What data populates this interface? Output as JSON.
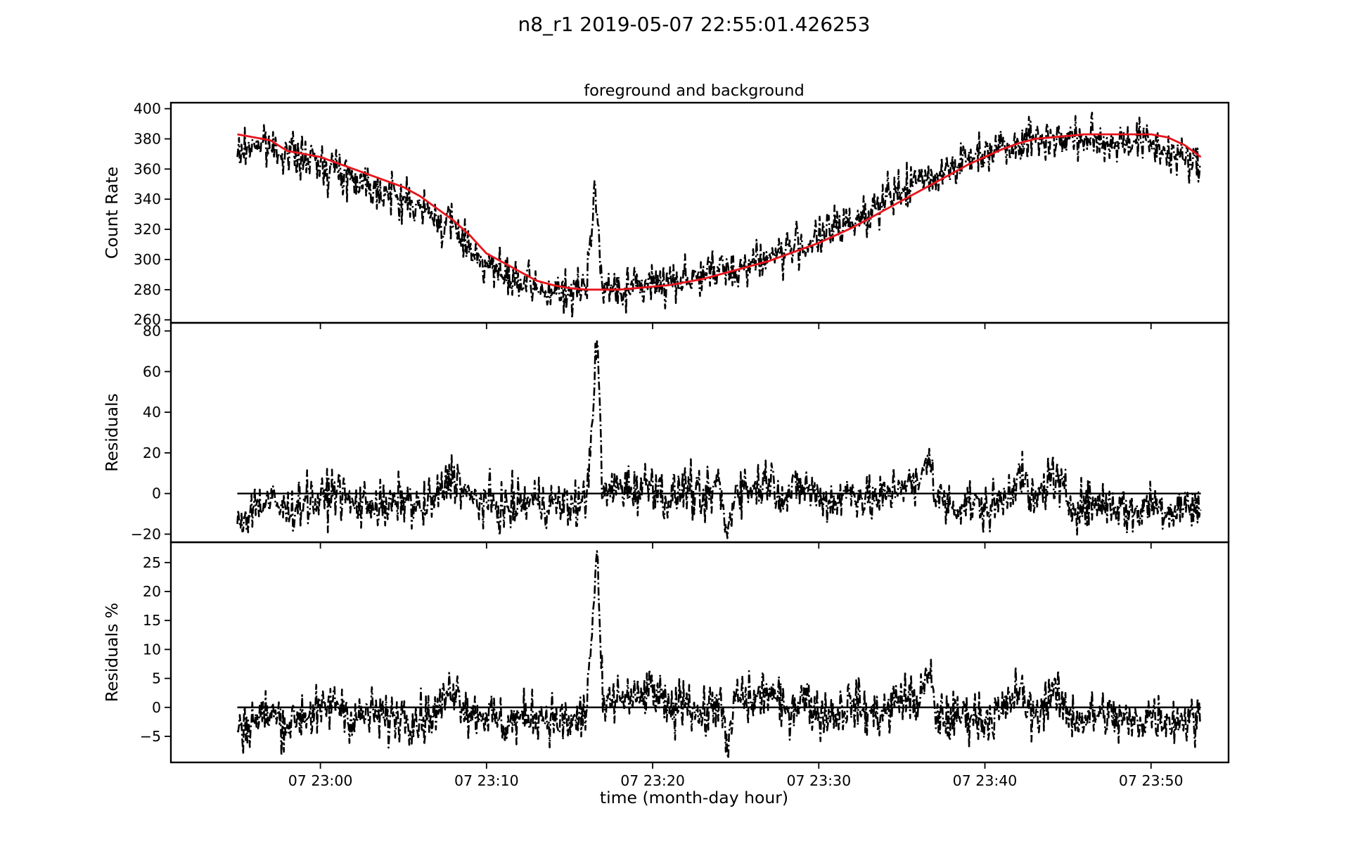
{
  "figure": {
    "suptitle": "n8_r1 2019-05-07 22:55:01.426253",
    "xlabel": "time (month-day hour)"
  },
  "chart_data": [
    {
      "type": "line",
      "title": "foreground and background",
      "ylabel": "Count Rate",
      "xlim": [
        "2019-05-07 22:51:00",
        "2019-05-07 23:54:40"
      ],
      "ylim": [
        258,
        404
      ],
      "yticks": [
        260,
        280,
        300,
        320,
        340,
        360,
        380,
        400
      ],
      "series": [
        {
          "role": "observed count rate",
          "color": "#000000",
          "style": "dash-dot",
          "x": [
            "22:55:00",
            "22:56:00",
            "22:57:00",
            "22:58:00",
            "22:59:00",
            "23:00:00",
            "23:01:00",
            "23:02:00",
            "23:03:00",
            "23:04:00",
            "23:05:00",
            "23:06:00",
            "23:07:00",
            "23:08:00",
            "23:09:00",
            "23:10:00",
            "23:11:00",
            "23:12:00",
            "23:13:00",
            "23:14:00",
            "23:15:00",
            "23:16:00",
            "23:16:30",
            "23:17:00",
            "23:18:00",
            "23:19:00",
            "23:20:00",
            "23:21:00",
            "23:22:00",
            "23:23:00",
            "23:24:00",
            "23:25:00",
            "23:26:00",
            "23:27:00",
            "23:28:00",
            "23:29:00",
            "23:30:00",
            "23:31:00",
            "23:32:00",
            "23:33:00",
            "23:34:00",
            "23:35:00",
            "23:36:00",
            "23:37:00",
            "23:38:00",
            "23:39:00",
            "23:40:00",
            "23:41:00",
            "23:42:00",
            "23:43:00",
            "23:44:00",
            "23:45:00",
            "23:46:00",
            "23:47:00",
            "23:48:00",
            "23:49:00",
            "23:50:00",
            "23:51:00",
            "23:52:00",
            "23:53:00"
          ],
          "y": [
            368,
            378,
            374,
            372,
            366,
            364,
            360,
            354,
            350,
            344,
            340,
            334,
            326,
            322,
            308,
            298,
            288,
            284,
            280,
            278,
            276,
            282,
            352,
            278,
            280,
            282,
            284,
            286,
            288,
            290,
            292,
            294,
            298,
            302,
            306,
            310,
            314,
            320,
            326,
            332,
            338,
            346,
            352,
            356,
            362,
            366,
            372,
            376,
            378,
            380,
            380,
            380,
            380,
            378,
            378,
            380,
            376,
            372,
            366,
            362
          ]
        },
        {
          "role": "background model",
          "color": "#e8141b",
          "style": "solid",
          "x": [
            "22:55:00",
            "22:56:00",
            "22:57:00",
            "22:58:00",
            "22:59:00",
            "23:00:00",
            "23:01:00",
            "23:02:00",
            "23:03:00",
            "23:04:00",
            "23:05:00",
            "23:06:00",
            "23:07:00",
            "23:08:00",
            "23:09:00",
            "23:10:00",
            "23:11:00",
            "23:12:00",
            "23:13:00",
            "23:14:00",
            "23:15:00",
            "23:16:00",
            "23:17:00",
            "23:18:00",
            "23:19:00",
            "23:20:00",
            "23:21:00",
            "23:22:00",
            "23:23:00",
            "23:24:00",
            "23:25:00",
            "23:26:00",
            "23:27:00",
            "23:28:00",
            "23:29:00",
            "23:30:00",
            "23:31:00",
            "23:32:00",
            "23:33:00",
            "23:34:00",
            "23:35:00",
            "23:36:00",
            "23:37:00",
            "23:38:00",
            "23:39:00",
            "23:40:00",
            "23:41:00",
            "23:42:00",
            "23:43:00",
            "23:44:00",
            "23:45:00",
            "23:46:00",
            "23:47:00",
            "23:48:00",
            "23:49:00",
            "23:50:00",
            "23:51:00",
            "23:52:00",
            "23:53:00"
          ],
          "y": [
            383,
            381,
            379,
            372,
            370,
            368,
            364,
            360,
            356,
            352,
            348,
            342,
            334,
            326,
            316,
            304,
            298,
            292,
            286,
            283,
            281,
            280,
            280,
            280,
            281,
            282,
            283,
            285,
            287,
            290,
            293,
            296,
            299,
            303,
            307,
            311,
            316,
            321,
            327,
            333,
            339,
            345,
            351,
            357,
            363,
            368,
            373,
            377,
            380,
            381,
            382,
            383,
            383,
            383,
            383,
            383,
            381,
            376,
            368
          ]
        }
      ]
    },
    {
      "type": "line",
      "ylabel": "Residuals",
      "xlim": [
        "2019-05-07 22:51:00",
        "2019-05-07 23:54:40"
      ],
      "ylim": [
        -24,
        84
      ],
      "yticks": [
        -20,
        0,
        20,
        40,
        60,
        80
      ],
      "ytick_labels": [
        "−20",
        "0",
        "20",
        "40",
        "60",
        "80"
      ],
      "zero_line": 0,
      "series": [
        {
          "role": "residuals",
          "color": "#000000",
          "style": "dash-dot",
          "x": [
            "22:55:00",
            "22:56:00",
            "22:57:00",
            "22:58:00",
            "22:59:00",
            "23:00:00",
            "23:01:00",
            "23:02:00",
            "23:03:00",
            "23:04:00",
            "23:05:00",
            "23:06:00",
            "23:07:00",
            "23:08:00",
            "23:09:00",
            "23:10:00",
            "23:11:00",
            "23:12:00",
            "23:13:00",
            "23:14:00",
            "23:15:00",
            "23:16:00",
            "23:16:40",
            "23:17:00",
            "23:18:00",
            "23:19:00",
            "23:20:00",
            "23:21:00",
            "23:22:00",
            "23:23:00",
            "23:24:00",
            "23:24:30",
            "23:25:00",
            "23:26:00",
            "23:27:00",
            "23:28:00",
            "23:29:00",
            "23:30:00",
            "23:31:00",
            "23:32:00",
            "23:33:00",
            "23:34:00",
            "23:35:00",
            "23:36:00",
            "23:36:40",
            "23:37:00",
            "23:38:00",
            "23:39:00",
            "23:40:00",
            "23:41:00",
            "23:42:00",
            "23:43:00",
            "23:44:00",
            "23:45:00",
            "23:46:00",
            "23:47:00",
            "23:48:00",
            "23:49:00",
            "23:50:00",
            "23:51:00",
            "23:52:00",
            "23:53:00"
          ],
          "y": [
            -15,
            -6,
            -4,
            -9,
            -3,
            -4,
            2,
            -6,
            -4,
            -8,
            -2,
            -8,
            -2,
            10,
            -3,
            -4,
            -8,
            -5,
            -3,
            -5,
            -6,
            -4,
            75,
            -2,
            4,
            2,
            6,
            -4,
            4,
            -6,
            6,
            -22,
            4,
            2,
            8,
            -2,
            4,
            -2,
            -4,
            2,
            -4,
            -2,
            6,
            2,
            22,
            -2,
            -6,
            -4,
            -8,
            -4,
            10,
            -6,
            10,
            -4,
            -6,
            -4,
            -6,
            -10,
            -4,
            -8,
            -6,
            -8
          ]
        }
      ]
    },
    {
      "type": "line",
      "ylabel": "Residuals %",
      "xlim": [
        "2019-05-07 22:51:00",
        "2019-05-07 23:54:40"
      ],
      "ylim": [
        -9.5,
        28.5
      ],
      "yticks": [
        -5,
        0,
        5,
        10,
        15,
        20,
        25
      ],
      "ytick_labels": [
        "−5",
        "0",
        "5",
        "10",
        "15",
        "20",
        "25"
      ],
      "zero_line": 0,
      "series": [
        {
          "role": "residuals percent",
          "color": "#000000",
          "style": "dash-dot",
          "x": [
            "22:55:00",
            "22:56:00",
            "22:57:00",
            "22:58:00",
            "22:59:00",
            "23:00:00",
            "23:01:00",
            "23:02:00",
            "23:03:00",
            "23:04:00",
            "23:05:00",
            "23:06:00",
            "23:07:00",
            "23:08:00",
            "23:09:00",
            "23:10:00",
            "23:11:00",
            "23:12:00",
            "23:13:00",
            "23:14:00",
            "23:15:00",
            "23:16:00",
            "23:16:40",
            "23:17:00",
            "23:18:00",
            "23:19:00",
            "23:20:00",
            "23:21:00",
            "23:22:00",
            "23:23:00",
            "23:24:00",
            "23:24:30",
            "23:25:00",
            "23:26:00",
            "23:27:00",
            "23:28:00",
            "23:29:00",
            "23:30:00",
            "23:31:00",
            "23:32:00",
            "23:33:00",
            "23:34:00",
            "23:35:00",
            "23:36:00",
            "23:36:40",
            "23:37:00",
            "23:38:00",
            "23:39:00",
            "23:40:00",
            "23:41:00",
            "23:42:00",
            "23:43:00",
            "23:44:00",
            "23:45:00",
            "23:46:00",
            "23:47:00",
            "23:48:00",
            "23:49:00",
            "23:50:00",
            "23:51:00",
            "23:52:00",
            "23:53:00"
          ],
          "y": [
            -4,
            -2,
            -1,
            -3,
            -1,
            -1,
            1,
            -2,
            -1,
            -2,
            -1,
            -2,
            -1,
            4,
            -1,
            -1,
            -3,
            -2,
            -1,
            -2,
            -3,
            -1,
            27,
            -1,
            2,
            1,
            3,
            -1,
            2,
            -2,
            2,
            -8,
            2,
            1,
            3,
            -1,
            2,
            -1,
            -1,
            1,
            -1,
            -1,
            2,
            1,
            6,
            -1,
            -2,
            -1,
            -2,
            -1,
            3,
            -2,
            3,
            -1,
            -2,
            -1,
            -2,
            -3,
            -1,
            -2,
            -2,
            -2
          ]
        }
      ]
    }
  ],
  "shared_x_axis": {
    "tick_times": [
      "23:00",
      "23:10",
      "23:20",
      "23:30",
      "23:40",
      "23:50"
    ],
    "tick_labels": [
      "07 23:00",
      "07 23:10",
      "07 23:20",
      "07 23:30",
      "07 23:40",
      "07 23:50"
    ]
  }
}
